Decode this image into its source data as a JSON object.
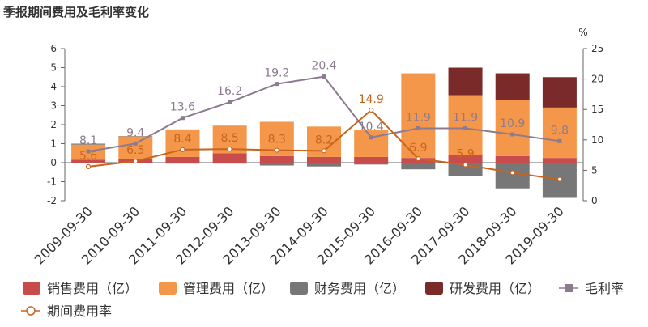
{
  "chart_data": {
    "type": "bar",
    "title": "季报期间费用及毛利率变化",
    "categories": [
      "2009-09-30",
      "2010-09-30",
      "2011-09-30",
      "2012-09-30",
      "2013-09-30",
      "2014-09-30",
      "2015-09-30",
      "2016-09-30",
      "2017-09-30",
      "2018-09-30",
      "2019-09-30"
    ],
    "y_left": {
      "ticks": [
        "-2",
        "-1",
        "0",
        "1",
        "2",
        "3",
        "4",
        "5",
        "6"
      ],
      "range": [
        -2,
        6
      ]
    },
    "y_right": {
      "label": "%",
      "ticks": [
        "0",
        "5",
        "10",
        "15",
        "20",
        "25"
      ],
      "range": [
        0,
        25
      ]
    },
    "series": [
      {
        "name": "销售费用（亿）",
        "type": "bar",
        "axis": "left",
        "color": "#c94c4c",
        "values": [
          0.15,
          0.18,
          0.3,
          0.5,
          0.35,
          0.3,
          0.3,
          0.25,
          0.4,
          0.35,
          0.25
        ]
      },
      {
        "name": "管理费用（亿）",
        "type": "bar",
        "axis": "left",
        "color": "#f5974a",
        "values": [
          0.8,
          1.2,
          1.45,
          1.45,
          1.8,
          1.6,
          1.4,
          4.45,
          3.15,
          2.95,
          2.65
        ]
      },
      {
        "name": "财务费用（亿）",
        "type": "bar",
        "axis": "left",
        "color": "#777777",
        "values": [
          0.05,
          0.02,
          -0.05,
          -0.05,
          -0.15,
          -0.2,
          -0.1,
          -0.35,
          -0.7,
          -1.35,
          -1.85
        ]
      },
      {
        "name": "研发费用（亿）",
        "type": "bar",
        "axis": "left",
        "color": "#7b2a2a",
        "values": [
          0,
          0,
          0,
          0,
          0,
          0,
          0,
          0,
          1.45,
          1.4,
          1.6
        ]
      },
      {
        "name": "毛利率",
        "type": "line",
        "axis": "right",
        "color": "#8c7b8f",
        "values": [
          8.1,
          9.4,
          13.6,
          16.2,
          19.2,
          20.4,
          10.4,
          11.9,
          11.9,
          10.9,
          9.8
        ],
        "labels": [
          "8.1",
          "9.4",
          "13.6",
          "16.2",
          "19.2",
          "20.4",
          "10.4",
          "11.9",
          "11.9",
          "10.9",
          "9.8"
        ]
      },
      {
        "name": "期间费用率",
        "type": "line",
        "axis": "right",
        "color": "#c8641e",
        "values": [
          5.6,
          6.5,
          8.4,
          8.5,
          8.3,
          8.2,
          14.9,
          6.9,
          5.9,
          4.6,
          3.5
        ],
        "labels": [
          "5.6",
          "6.5",
          "8.4",
          "8.5",
          "8.3",
          "8.2",
          "14.9",
          "6.9",
          "5.9",
          "",
          ""
        ]
      }
    ],
    "legend": {
      "position": "bottom"
    }
  }
}
